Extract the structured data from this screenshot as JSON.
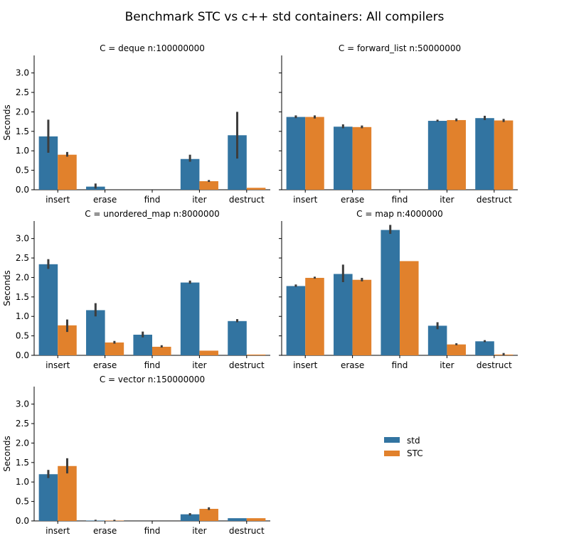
{
  "figure_title": "Benchmark STC vs c++ std containers: All compilers",
  "legend": [
    {
      "label": "std",
      "color": "#3274a1"
    },
    {
      "label": "STC",
      "color": "#e1812c"
    }
  ],
  "chart_data": [
    {
      "type": "bar",
      "title": "C = deque n:100000000",
      "ylabel": "Seconds",
      "xlabel": "",
      "ylim": [
        0,
        3.45
      ],
      "yticks": [
        0.0,
        0.5,
        1.0,
        1.5,
        2.0,
        2.5,
        3.0
      ],
      "ytick_labels": [
        "0.0",
        "0.5",
        "1.0",
        "1.5",
        "2.0",
        "2.5",
        "3.0"
      ],
      "categories": [
        "insert",
        "erase",
        "find",
        "iter",
        "destruct"
      ],
      "series": [
        {
          "name": "std",
          "values": [
            1.37,
            0.08,
            0,
            0.79,
            1.4
          ],
          "err_low": [
            0.95,
            0.03,
            null,
            0.72,
            0.8
          ],
          "err_high": [
            1.8,
            0.16,
            null,
            0.9,
            2.0
          ]
        },
        {
          "name": "STC",
          "values": [
            0.9,
            0,
            0,
            0.22,
            0.05
          ],
          "err_low": [
            0.85,
            null,
            null,
            0.2,
            null
          ],
          "err_high": [
            0.97,
            null,
            null,
            0.25,
            null
          ]
        }
      ]
    },
    {
      "type": "bar",
      "title": "C = forward_list n:50000000",
      "ylabel": "",
      "xlabel": "",
      "ylim": [
        0,
        3.45
      ],
      "yticks": [
        0.0,
        0.5,
        1.0,
        1.5,
        2.0,
        2.5,
        3.0
      ],
      "ytick_labels": [],
      "categories": [
        "insert",
        "erase",
        "find",
        "iter",
        "destruct"
      ],
      "series": [
        {
          "name": "std",
          "values": [
            1.87,
            1.62,
            0,
            1.77,
            1.84
          ],
          "err_low": [
            1.84,
            1.58,
            null,
            1.75,
            1.79
          ],
          "err_high": [
            1.91,
            1.68,
            null,
            1.8,
            1.9
          ]
        },
        {
          "name": "STC",
          "values": [
            1.87,
            1.61,
            0,
            1.79,
            1.78
          ],
          "err_low": [
            1.83,
            1.58,
            null,
            1.76,
            1.74
          ],
          "err_high": [
            1.91,
            1.65,
            null,
            1.83,
            1.82
          ]
        }
      ]
    },
    {
      "type": "bar",
      "title": "C = unordered_map n:8000000",
      "ylabel": "Seconds",
      "xlabel": "",
      "ylim": [
        0,
        3.45
      ],
      "yticks": [
        0.0,
        0.5,
        1.0,
        1.5,
        2.0,
        2.5,
        3.0
      ],
      "ytick_labels": [
        "0.0",
        "0.5",
        "1.0",
        "1.5",
        "2.0",
        "2.5",
        "3.0"
      ],
      "categories": [
        "insert",
        "erase",
        "find",
        "iter",
        "destruct"
      ],
      "series": [
        {
          "name": "std",
          "values": [
            2.34,
            1.16,
            0.53,
            1.87,
            0.88
          ],
          "err_low": [
            2.22,
            1.0,
            0.46,
            1.84,
            0.85
          ],
          "err_high": [
            2.47,
            1.34,
            0.61,
            1.92,
            0.93
          ]
        },
        {
          "name": "STC",
          "values": [
            0.77,
            0.33,
            0.22,
            0.12,
            0.02
          ],
          "err_low": [
            0.6,
            0.3,
            0.2,
            null,
            null
          ],
          "err_high": [
            0.92,
            0.37,
            0.26,
            null,
            null
          ]
        }
      ]
    },
    {
      "type": "bar",
      "title": "C = map n:4000000",
      "ylabel": "",
      "xlabel": "",
      "ylim": [
        0,
        3.45
      ],
      "yticks": [
        0.0,
        0.5,
        1.0,
        1.5,
        2.0,
        2.5,
        3.0
      ],
      "ytick_labels": [],
      "categories": [
        "insert",
        "erase",
        "find",
        "iter",
        "destruct"
      ],
      "series": [
        {
          "name": "std",
          "values": [
            1.78,
            2.09,
            3.22,
            0.76,
            0.36
          ],
          "err_low": [
            1.76,
            1.88,
            3.12,
            0.67,
            0.34
          ],
          "err_high": [
            1.82,
            2.33,
            3.35,
            0.85,
            0.39
          ]
        },
        {
          "name": "STC",
          "values": [
            1.99,
            1.94,
            2.42,
            0.28,
            0.02
          ],
          "err_low": [
            1.97,
            1.9,
            null,
            0.26,
            0.0
          ],
          "err_high": [
            2.02,
            1.99,
            null,
            0.31,
            0.06
          ]
        }
      ]
    },
    {
      "type": "bar",
      "title": "C = vector n:150000000",
      "ylabel": "Seconds",
      "xlabel": "",
      "ylim": [
        0,
        3.45
      ],
      "yticks": [
        0.0,
        0.5,
        1.0,
        1.5,
        2.0,
        2.5,
        3.0
      ],
      "ytick_labels": [
        "0.0",
        "0.5",
        "1.0",
        "1.5",
        "2.0",
        "2.5",
        "3.0"
      ],
      "categories": [
        "insert",
        "erase",
        "find",
        "iter",
        "destruct"
      ],
      "series": [
        {
          "name": "std",
          "values": [
            1.2,
            0.01,
            0,
            0.17,
            0.07
          ],
          "err_low": [
            1.1,
            0.0,
            null,
            0.14,
            null
          ],
          "err_high": [
            1.31,
            0.03,
            null,
            0.2,
            null
          ]
        },
        {
          "name": "STC",
          "values": [
            1.41,
            0.01,
            0,
            0.31,
            0.07
          ],
          "err_low": [
            1.22,
            0.0,
            null,
            0.28,
            null
          ],
          "err_high": [
            1.61,
            0.03,
            null,
            0.35,
            null
          ]
        }
      ]
    }
  ]
}
